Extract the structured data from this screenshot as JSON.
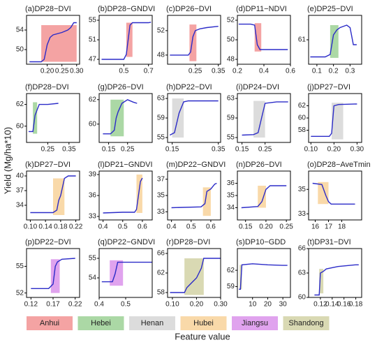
{
  "ylabel": "Yield (Mg/ha*10)",
  "xlabel": "Feature value",
  "legend": [
    {
      "name": "Anhui",
      "color": "#f4a3a3"
    },
    {
      "name": "Hebei",
      "color": "#abd8a5"
    },
    {
      "name": "Henan",
      "color": "#dcdcdc"
    },
    {
      "name": "Hubei",
      "color": "#f9d9a9"
    },
    {
      "name": "Jiangsu",
      "color": "#e0a3ee"
    },
    {
      "name": "Shandong",
      "color": "#d9d9b3"
    }
  ],
  "chart_data": [
    {
      "type": "line",
      "title": "(a)DP28−DVI",
      "xlim": [
        0.13,
        0.31
      ],
      "xticks": [
        {
          "value": 0.2,
          "label": "0.20"
        },
        {
          "value": 0.25,
          "label": "0.25"
        },
        {
          "value": 0.3,
          "label": "0.30"
        }
      ],
      "ylim": [
        47,
        57
      ],
      "yticks": [
        50,
        54
      ],
      "x": [
        0.14,
        0.18,
        0.19,
        0.2,
        0.21,
        0.22,
        0.25,
        0.27,
        0.28,
        0.29,
        0.3
      ],
      "values": [
        47.5,
        47.5,
        48,
        51,
        52.5,
        53,
        53.5,
        54,
        54.5,
        55.5,
        55.5
      ],
      "highlight": {
        "x": [
          0.18,
          0.3
        ],
        "y": [
          47.5,
          55
        ],
        "color": "#f4a3a3"
      }
    },
    {
      "type": "line",
      "title": "(b)DP28−GNDVI",
      "xlim": [
        0.3,
        0.73
      ],
      "xticks": [
        0.5,
        0.7
      ],
      "ylim": [
        46,
        56
      ],
      "yticks": [
        47,
        51,
        55
      ],
      "x": [
        0.32,
        0.5,
        0.52,
        0.55,
        0.57,
        0.7,
        0.72
      ],
      "values": [
        47,
        47,
        48,
        54,
        54.5,
        54.5,
        54.6
      ],
      "highlight": {
        "x": [
          0.52,
          0.57
        ],
        "y": [
          47.5,
          54.5
        ],
        "color": "#f4a3a3"
      }
    },
    {
      "type": "line",
      "title": "(c)DP26−DVI",
      "xlim": [
        0.13,
        0.36
      ],
      "xticks": [
        0.25,
        0.35
      ],
      "ylim": [
        46.5,
        54.5
      ],
      "yticks": [
        48,
        52
      ],
      "x": [
        0.14,
        0.22,
        0.23,
        0.24,
        0.25,
        0.27,
        0.3,
        0.35
      ],
      "values": [
        48,
        48,
        48.5,
        51,
        52,
        52.3,
        52.5,
        52.7
      ],
      "highlight": {
        "x": [
          0.225,
          0.255
        ],
        "y": [
          47,
          53
        ],
        "color": "#f4a3a3"
      }
    },
    {
      "type": "line",
      "title": "(d)DP11−NDVI",
      "xlim": [
        0.2,
        0.6
      ],
      "xticks": [
        0.2,
        0.4,
        0.6
      ],
      "ylim": [
        47.5,
        52.5
      ],
      "yticks": [
        48,
        50,
        52
      ],
      "x": [
        0.21,
        0.3,
        0.33,
        0.35,
        0.37,
        0.4,
        0.58
      ],
      "values": [
        51.6,
        51.6,
        51.5,
        49.5,
        49,
        49,
        49
      ],
      "highlight": {
        "x": [
          0.33,
          0.38
        ],
        "y": [
          48.8,
          51.7
        ],
        "color": "#f4a3a3"
      }
    },
    {
      "type": "line",
      "title": "(e)DP25−DVI",
      "xlim": [
        0.05,
        0.37
      ],
      "xticks": [
        0.1,
        0.2,
        0.3
      ],
      "ylim": [
        56,
        66
      ],
      "yticks": [
        61
      ],
      "x": [
        0.06,
        0.15,
        0.18,
        0.2,
        0.22,
        0.24,
        0.28,
        0.3,
        0.32,
        0.34
      ],
      "values": [
        57.5,
        57.5,
        58,
        62,
        63,
        63.5,
        64,
        63.5,
        60,
        60
      ],
      "highlight": {
        "x": [
          0.18,
          0.23
        ],
        "y": [
          57.3,
          64
        ],
        "color": "#abd8a5"
      }
    },
    {
      "type": "line",
      "title": "(f)DP28−DVI",
      "xlim": [
        0.15,
        0.4
      ],
      "xticks": [
        0.25,
        0.35
      ],
      "ylim": [
        58.5,
        63
      ],
      "yticks": [
        60,
        62
      ],
      "x": [
        0.16,
        0.18,
        0.19,
        0.2,
        0.21,
        0.25,
        0.3
      ],
      "values": [
        59.5,
        59.5,
        61,
        61.5,
        62,
        62,
        62.1
      ],
      "highlight": {
        "x": [
          0.18,
          0.2
        ],
        "y": [
          59.3,
          62.2
        ],
        "color": "#abd8a5"
      }
    },
    {
      "type": "line",
      "title": "(g)DP26−DVI",
      "xlim": [
        0.1,
        0.38
      ],
      "xticks": [
        0.15,
        0.25
      ],
      "ylim": [
        58.5,
        62.5
      ],
      "yticks": [
        60,
        62
      ],
      "x": [
        0.12,
        0.16,
        0.18,
        0.19,
        0.2,
        0.22,
        0.25,
        0.28,
        0.3
      ],
      "values": [
        59.2,
        59.2,
        59.5,
        60.5,
        61,
        61.7,
        62,
        61.8,
        61.7
      ],
      "highlight": {
        "x": [
          0.16,
          0.23
        ],
        "y": [
          59,
          62
        ],
        "color": "#abd8a5"
      }
    },
    {
      "type": "line",
      "title": "(h)DP22−DVI",
      "xlim": [
        0.13,
        0.36
      ],
      "xticks": [
        0.15,
        0.35
      ],
      "ylim": [
        54,
        64
      ],
      "yticks": [
        55,
        59,
        63
      ],
      "x": [
        0.14,
        0.16,
        0.18,
        0.2,
        0.22,
        0.3,
        0.35
      ],
      "values": [
        55.5,
        56,
        60,
        62.3,
        62.5,
        62.5,
        62.5
      ],
      "highlight": {
        "x": [
          0.15,
          0.2
        ],
        "y": [
          55,
          63
        ],
        "color": "#dcdcdc"
      }
    },
    {
      "type": "line",
      "title": "(i)DP24−DVI",
      "xlim": [
        0.13,
        0.36
      ],
      "xticks": [
        0.15,
        0.25
      ],
      "ylim": [
        54,
        64
      ],
      "yticks": [
        55,
        59,
        63
      ],
      "x": [
        0.15,
        0.2,
        0.22,
        0.23,
        0.24,
        0.25,
        0.3,
        0.35
      ],
      "values": [
        55.5,
        55.6,
        56,
        58,
        60,
        62,
        62.3,
        62.3
      ],
      "highlight": {
        "x": [
          0.2,
          0.25
        ],
        "y": [
          55,
          62.5
        ],
        "color": "#dcdcdc"
      }
    },
    {
      "type": "line",
      "title": "(j)DP27−DVI",
      "xlim": [
        0.09,
        0.32
      ],
      "xticks": [
        {
          "value": 0.1,
          "label": "0.10"
        },
        {
          "value": 0.2,
          "label": "0.20"
        },
        {
          "value": 0.3,
          "label": "0.30"
        }
      ],
      "ylim": [
        56,
        64
      ],
      "yticks": [
        58,
        60,
        62
      ],
      "x": [
        0.1,
        0.18,
        0.19,
        0.2,
        0.22,
        0.3
      ],
      "values": [
        57,
        57,
        57.5,
        62,
        62.2,
        62.3
      ],
      "highlight": {
        "x": [
          0.19,
          0.24
        ],
        "y": [
          56.5,
          62.5
        ],
        "color": "#dcdcdc"
      }
    },
    {
      "type": "line",
      "title": "(k)DP27−DVI",
      "xlim": [
        0.09,
        0.23
      ],
      "xticks": [
        {
          "value": 0.1,
          "label": "0.10"
        },
        0.14,
        0.18,
        0.22
      ],
      "ylim": [
        31,
        41
      ],
      "yticks": [
        34,
        37,
        40
      ],
      "x": [
        0.1,
        0.16,
        0.17,
        0.175,
        0.18,
        0.19,
        0.2,
        0.22
      ],
      "values": [
        32.5,
        32.5,
        33,
        35,
        36,
        39.5,
        40,
        40
      ],
      "highlight": {
        "x": [
          0.16,
          0.19
        ],
        "y": [
          32,
          39.5
        ],
        "color": "#f9d9a9"
      }
    },
    {
      "type": "line",
      "title": "(l)DP21−GNDVI",
      "xlim": [
        0.38,
        0.65
      ],
      "xticks": [
        0.4,
        0.5,
        0.6
      ],
      "ylim": [
        32.5,
        39.5
      ],
      "yticks": [
        33,
        36,
        39
      ],
      "x": [
        0.4,
        0.5,
        0.56,
        0.57,
        0.58,
        0.59,
        0.6
      ],
      "values": [
        33.5,
        33.6,
        33.6,
        34,
        36,
        38,
        38.5
      ],
      "highlight": {
        "x": [
          0.57,
          0.6
        ],
        "y": [
          33.5,
          39
        ],
        "color": "#f9d9a9"
      }
    },
    {
      "type": "line",
      "title": "(m)DP22−GNDVI",
      "xlim": [
        0.38,
        0.65
      ],
      "xticks": [
        0.4,
        0.5,
        0.6
      ],
      "ylim": [
        32,
        38
      ],
      "yticks": [
        33,
        35,
        37
      ],
      "x": [
        0.4,
        0.55,
        0.57,
        0.58,
        0.6,
        0.62,
        0.63
      ],
      "values": [
        33.5,
        33.6,
        34,
        35.5,
        35.8,
        36.4,
        36.5
      ],
      "highlight": {
        "x": [
          0.56,
          0.6
        ],
        "y": [
          32.5,
          36
        ],
        "color": "#f9d9a9"
      }
    },
    {
      "type": "line",
      "title": "(n)DP26−DVI",
      "xlim": [
        0.13,
        0.26
      ],
      "xticks": [
        0.15,
        {
          "value": 0.2,
          "label": "0.20"
        },
        0.25
      ],
      "ylim": [
        33,
        37
      ],
      "yticks": [
        34,
        35,
        36
      ],
      "x": [
        0.14,
        0.18,
        0.19,
        0.2,
        0.21,
        0.23,
        0.25
      ],
      "values": [
        34,
        34.1,
        34.5,
        35.5,
        35.8,
        35.8,
        35.8
      ],
      "highlight": {
        "x": [
          0.18,
          0.2
        ],
        "y": [
          34,
          35.8
        ],
        "color": "#f9d9a9"
      }
    },
    {
      "type": "line",
      "title": "(o)DP28−AveTmin",
      "xlim": [
        15.5,
        19.5
      ],
      "xticks": [
        16,
        17,
        18
      ],
      "ylim": [
        32.5,
        36.5
      ],
      "yticks": [
        33,
        35
      ],
      "x": [
        15.8,
        16.5,
        16.8,
        17,
        17.2,
        18,
        19
      ],
      "values": [
        35.5,
        35.4,
        34.5,
        34,
        33.8,
        33.8,
        33.8
      ],
      "highlight": {
        "x": [
          16.2,
          17
        ],
        "y": [
          33.8,
          35.6
        ],
        "color": "#f9d9a9"
      }
    },
    {
      "type": "line",
      "title": "(p)DP22−DVI",
      "xlim": [
        0.11,
        0.23
      ],
      "xticks": [
        0.12,
        0.17,
        0.22
      ],
      "ylim": [
        51.5,
        57
      ],
      "yticks": [
        52,
        55
      ],
      "x": [
        0.12,
        0.16,
        0.17,
        0.175,
        0.18,
        0.19,
        0.22
      ],
      "values": [
        52.5,
        52.5,
        53,
        55,
        55.5,
        55.8,
        55.9
      ],
      "highlight": {
        "x": [
          0.165,
          0.185
        ],
        "y": [
          52,
          55.8
        ],
        "color": "#e0a3ee"
      }
    },
    {
      "type": "line",
      "title": "(q)DP22−GNDVI",
      "xlim": [
        0.4,
        0.6
      ],
      "xticks": [
        0.4,
        0.5
      ],
      "ylim": [
        53,
        55.5
      ],
      "yticks": [
        54,
        55
      ],
      "x": [
        0.41,
        0.45,
        0.46,
        0.47,
        0.5,
        0.6
      ],
      "values": [
        53.8,
        53.8,
        54.2,
        54.8,
        54.8,
        54.8
      ],
      "highlight": {
        "x": [
          0.44,
          0.49
        ],
        "y": [
          53.6,
          54.9
        ],
        "color": "#e0a3ee"
      }
    },
    {
      "type": "line",
      "title": "(r)DP28−DVI",
      "xlim": [
        0.08,
        0.3
      ],
      "xticks": [
        {
          "value": 0.1,
          "label": "0.10"
        },
        {
          "value": 0.2,
          "label": "0.20"
        },
        {
          "value": 0.3,
          "label": "0.30"
        }
      ],
      "ylim": [
        57,
        67
      ],
      "yticks": [
        58,
        62,
        66
      ],
      "x": [
        0.09,
        0.15,
        0.16,
        0.18,
        0.2,
        0.22,
        0.23,
        0.3
      ],
      "values": [
        58,
        58,
        59,
        60,
        61,
        63,
        65,
        65
      ],
      "highlight": {
        "x": [
          0.15,
          0.23
        ],
        "y": [
          57.5,
          65
        ],
        "color": "#d9d9b3"
      }
    },
    {
      "type": "line",
      "title": "(s)DP10−GDD",
      "xlim": [
        0,
        35
      ],
      "xticks": [
        10,
        20,
        30
      ],
      "ylim": [
        57,
        66
      ],
      "yticks": [
        59,
        62
      ],
      "x": [
        1,
        2,
        3,
        10,
        20,
        30,
        33
      ],
      "values": [
        58.5,
        58.5,
        63,
        63.2,
        63,
        62.9,
        62.9
      ],
      "highlight": {
        "x": [
          1.5,
          3
        ],
        "y": [
          58.5,
          63
        ],
        "color": "#d9d9b3"
      }
    },
    {
      "type": "line",
      "title": "(t)DP31−DVI",
      "xlim": [
        0.1,
        0.19
      ],
      "xticks": [
        0.12,
        0.14,
        0.16,
        0.18
      ],
      "ylim": [
        60,
        66
      ],
      "yticks": [
        60,
        63,
        66
      ],
      "x": [
        0.11,
        0.118,
        0.12,
        0.125,
        0.13,
        0.15,
        0.18,
        0.185
      ],
      "values": [
        60.3,
        60.3,
        63,
        63.2,
        63.5,
        63.8,
        64,
        64
      ],
      "highlight": {
        "x": [
          0.118,
          0.125
        ],
        "y": [
          60.5,
          63.5
        ],
        "color": "#d9d9b3"
      }
    }
  ]
}
